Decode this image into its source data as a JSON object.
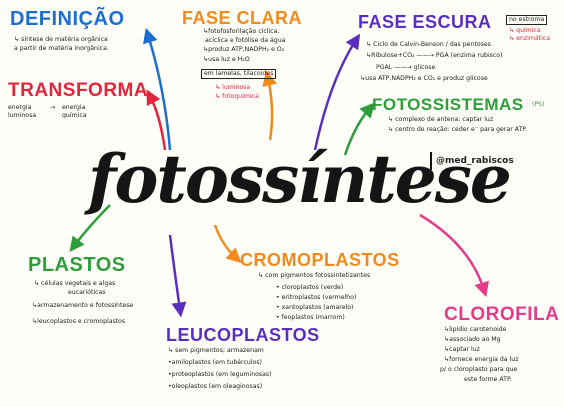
{
  "colors": {
    "blue": "#1a6fd1",
    "orange": "#f08a1c",
    "purple": "#5a2fbf",
    "red": "#e3243b",
    "green": "#2e9e3a",
    "pink": "#e63a8a",
    "dark": "#151515"
  },
  "center": {
    "title": "fotossíntese",
    "handle": "@med_rabiscos"
  },
  "definicao": {
    "title": "DEFINIÇÃO",
    "lines": [
      "↳ síntese de matéria orgânica",
      "a partir de matéria inorgânica."
    ]
  },
  "transforma": {
    "title": "TRANSFORMA",
    "from": "energia luminosa",
    "arrow": "→",
    "to": "energia química"
  },
  "fase_clara": {
    "title": "FASE CLARA",
    "lines": [
      "↳fotofosforilação cíclica,",
      "acíclica e fotólise da água",
      "↳produz ATP,NADPH₂ e O₂",
      "↳usa luz e H₂O"
    ],
    "location": "em lamelas, tilacoides",
    "sublist": [
      "↳ luminosa",
      "↳ fotoquímica"
    ]
  },
  "fase_escura": {
    "title": "FASE ESCURA",
    "note": "no estroma",
    "sublist": [
      "↳ química",
      "↳ enzimática"
    ],
    "lines": [
      "↳ Ciclo de Calvin-Benson / das pentoses",
      "↳Ribulose+CO₂ ——→ PGA (enzima rubisco)",
      "PGAL ——→ glicose",
      "↳usa ATP,NADPH₂ e CO₂ e produz glicose"
    ]
  },
  "fotossistemas": {
    "title": "FOTOSSISTEMAS",
    "tag": "(PS)",
    "lines": [
      "↳ complexo de antena: captar luz",
      "↳ centro de reação: ceder e⁻ para gerar ATP."
    ]
  },
  "plastos": {
    "title": "PLASTOS",
    "lines": [
      "↳ células vegetais e algas",
      "eucarióticas",
      "↳armazenamento e fotossíntese",
      "↳leucoplastos e cromoplastos"
    ]
  },
  "cromoplastos": {
    "title": "CROMOPLASTOS",
    "lines": [
      "↳ com pigmentos fotossintetizantes",
      "• cloroplastos (verde)",
      "• eritroplastos (vermelho)",
      "• xantoplastos (amarelo)",
      "• feoplastos (marrom)"
    ]
  },
  "leucoplastos": {
    "title": "LEUCOPLASTOS",
    "lines": [
      "↳ sem pigmentos; armazenam",
      "•amiloplastos (em tubérculos)",
      "•proteoplastos (em leguminosas)",
      "•oleoplastos (em oleaginosas)"
    ]
  },
  "clorofila": {
    "title": "CLOROFILA",
    "lines": [
      "↳lipídio carotenoide",
      "↳associado ao Mg",
      "↳captar luz",
      "↳fornece energia da luz",
      "p/ o cloroplasto para que",
      "este forme ATP."
    ]
  }
}
